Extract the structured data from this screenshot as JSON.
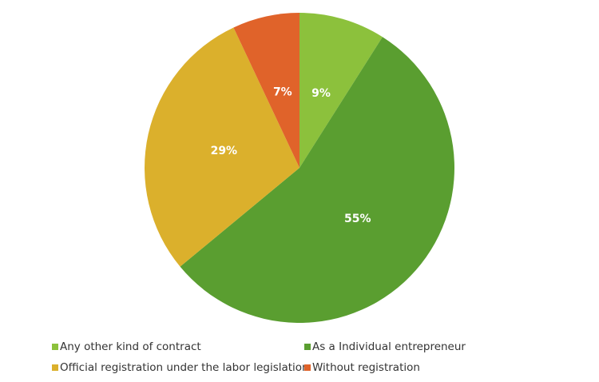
{
  "chart_data": {
    "type": "pie",
    "categories": [
      "Any other kind of contract",
      "As a Individual entrepreneur",
      "Official registration under the labor legislation",
      "Without registration"
    ],
    "values": [
      9,
      55,
      29,
      7
    ],
    "value_labels": [
      "9%",
      "55%",
      "29%",
      "7%"
    ],
    "colors": [
      "#8cc13c",
      "#5a9e30",
      "#dbb02c",
      "#e0632a"
    ],
    "legend": "bottom"
  }
}
